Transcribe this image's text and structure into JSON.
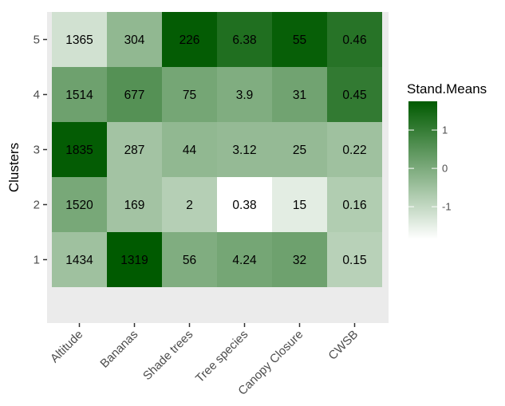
{
  "chart_data": {
    "type": "heatmap",
    "xlabel": "",
    "ylabel": "Clusters",
    "x_categories": [
      "Altitude",
      "Bananas",
      "Shade trees",
      "Tree species",
      "Canopy Closure",
      "CWSB"
    ],
    "y_categories": [
      "1",
      "2",
      "3",
      "4",
      "5"
    ],
    "cells": [
      {
        "x": "Altitude",
        "y": "5",
        "label": "1365",
        "z": -1.2
      },
      {
        "x": "Bananas",
        "y": "5",
        "label": "304",
        "z": -0.3
      },
      {
        "x": "Shade trees",
        "y": "5",
        "label": "226",
        "z": 1.7
      },
      {
        "x": "Tree species",
        "y": "5",
        "label": "6.38",
        "z": 1.3
      },
      {
        "x": "Canopy Closure",
        "y": "5",
        "label": "55",
        "z": 1.65
      },
      {
        "x": "CWSB",
        "y": "5",
        "label": "0.46",
        "z": 1.2
      },
      {
        "x": "Altitude",
        "y": "4",
        "label": "1514",
        "z": 0.2
      },
      {
        "x": "Bananas",
        "y": "4",
        "label": "677",
        "z": 0.55
      },
      {
        "x": "Shade trees",
        "y": "4",
        "label": "75",
        "z": 0.1
      },
      {
        "x": "Tree species",
        "y": "4",
        "label": "3.9",
        "z": -0.05
      },
      {
        "x": "Canopy Closure",
        "y": "4",
        "label": "31",
        "z": 0.15
      },
      {
        "x": "CWSB",
        "y": "4",
        "label": "0.45",
        "z": 1.05
      },
      {
        "x": "Altitude",
        "y": "3",
        "label": "1835",
        "z": 1.7
      },
      {
        "x": "Bananas",
        "y": "3",
        "label": "287",
        "z": -0.55
      },
      {
        "x": "Shade trees",
        "y": "3",
        "label": "44",
        "z": -0.3
      },
      {
        "x": "Tree species",
        "y": "3",
        "label": "3.12",
        "z": -0.35
      },
      {
        "x": "Canopy Closure",
        "y": "3",
        "label": "25",
        "z": -0.35
      },
      {
        "x": "CWSB",
        "y": "3",
        "label": "0.22",
        "z": -0.5
      },
      {
        "x": "Altitude",
        "y": "2",
        "label": "1520",
        "z": 0.05
      },
      {
        "x": "Bananas",
        "y": "2",
        "label": "169",
        "z": -0.55
      },
      {
        "x": "Shade trees",
        "y": "2",
        "label": "2",
        "z": -0.8
      },
      {
        "x": "Tree species",
        "y": "2",
        "label": "0.38",
        "z": -1.85
      },
      {
        "x": "Canopy Closure",
        "y": "2",
        "label": "15",
        "z": -1.45
      },
      {
        "x": "CWSB",
        "y": "2",
        "label": "0.16",
        "z": -0.75
      },
      {
        "x": "Altitude",
        "y": "1",
        "label": "1434",
        "z": -0.5
      },
      {
        "x": "Bananas",
        "y": "1",
        "label": "1319",
        "z": 1.75
      },
      {
        "x": "Shade trees",
        "y": "1",
        "label": "56",
        "z": -0.05
      },
      {
        "x": "Tree species",
        "y": "1",
        "label": "4.24",
        "z": 0.1
      },
      {
        "x": "Canopy Closure",
        "y": "1",
        "label": "32",
        "z": 0.2
      },
      {
        "x": "CWSB",
        "y": "1",
        "label": "0.15",
        "z": -0.85
      }
    ],
    "legend": {
      "title": "Stand.Means",
      "placement": "right",
      "ticks": [
        "1",
        "0",
        "-1"
      ],
      "tick_values": [
        1,
        0,
        -1
      ],
      "range": [
        -1.85,
        1.75
      ]
    },
    "colors": {
      "low": "#ffffff",
      "high": "#005a00",
      "panel_background": "#ebebeb"
    },
    "grid": false
  }
}
